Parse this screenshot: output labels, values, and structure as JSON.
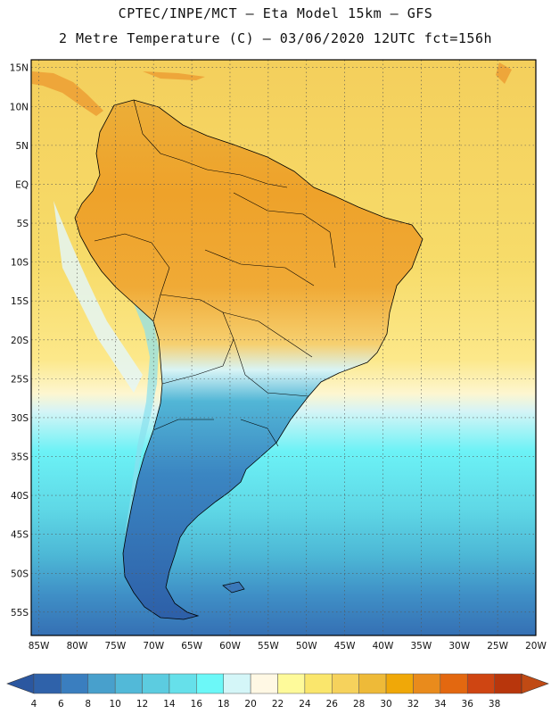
{
  "header": {
    "line1": "CPTEC/INPE/MCT –  Eta Model 15km – GFS",
    "line2": "2 Metre Temperature (C) – 03/06/2020 12UTC fct=156h"
  },
  "map": {
    "lat_labels": [
      "15N",
      "10N",
      "5N",
      "EQ",
      "5S",
      "10S",
      "15S",
      "20S",
      "25S",
      "30S",
      "35S",
      "40S",
      "45S",
      "50S",
      "55S"
    ],
    "lon_labels": [
      "85W",
      "80W",
      "75W",
      "70W",
      "65W",
      "60W",
      "55W",
      "50W",
      "45W",
      "40W",
      "35W",
      "30W",
      "25W",
      "20W"
    ],
    "lat_range": [
      -58,
      16
    ],
    "lon_range": [
      -86,
      -20
    ]
  },
  "colorbar": {
    "ticks": [
      "4",
      "6",
      "8",
      "10",
      "12",
      "14",
      "16",
      "18",
      "20",
      "22",
      "24",
      "26",
      "28",
      "30",
      "32",
      "34",
      "36",
      "38"
    ],
    "colors": [
      "#2f62aa",
      "#3a7ebf",
      "#48a0cc",
      "#52b9d8",
      "#5ccce0",
      "#66e0ea",
      "#6cf8f8",
      "#d4f6f8",
      "#fff8e4",
      "#fefa9a",
      "#fae66c",
      "#f6d25c",
      "#eeba38",
      "#f0a808",
      "#e98b1c",
      "#e36810",
      "#cf4512",
      "#b8360c"
    ],
    "under_color": "#2b57a0",
    "over_color": "#c04a14"
  }
}
